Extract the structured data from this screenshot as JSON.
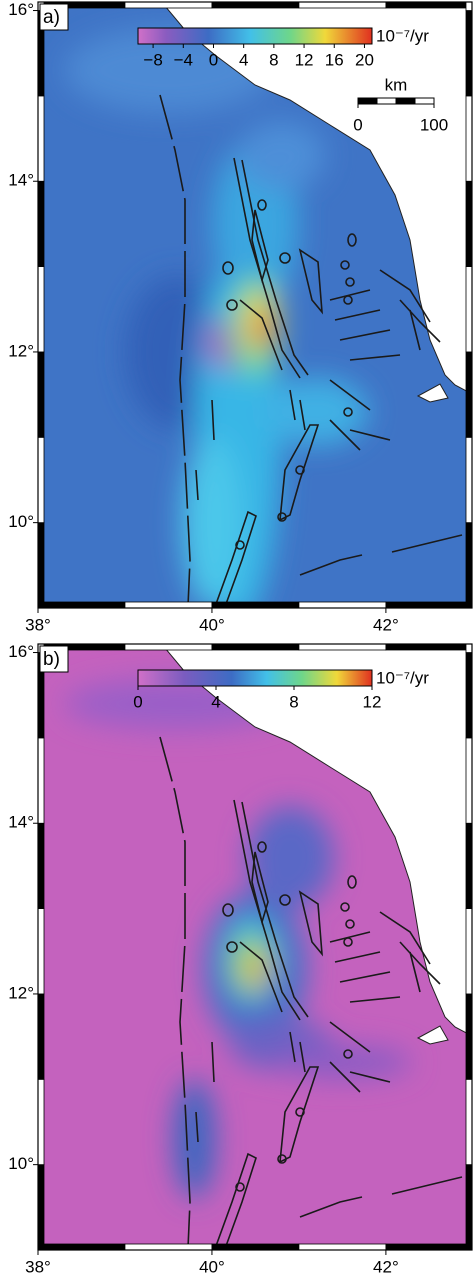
{
  "panels": [
    {
      "label": "a)",
      "colorbar": {
        "clim": [
          -10,
          21
        ],
        "ticks": [
          {
            "value": -8,
            "label": "−8"
          },
          {
            "value": -4,
            "label": "−4"
          },
          0,
          4,
          8,
          12,
          16,
          20
        ],
        "unit": "10⁻⁷/yr"
      },
      "scale_bar": {
        "title": "km",
        "ticks": [
          0,
          100
        ]
      },
      "map": {
        "xlim": [
          38,
          42.99
        ],
        "ylim": [
          9,
          16.1
        ],
        "xticks": [
          {
            "value": 38,
            "label": "38°"
          },
          {
            "value": 40,
            "label": "40°"
          },
          {
            "value": 42,
            "label": "42°"
          }
        ],
        "yticks": [
          {
            "value": 10,
            "label": "10°"
          },
          {
            "value": 12,
            "label": "12°"
          },
          {
            "value": 14,
            "label": "14°"
          },
          {
            "value": 16,
            "label": "16°"
          }
        ]
      }
    },
    {
      "label": "b)",
      "colorbar": {
        "clim": [
          0,
          12
        ],
        "ticks": [
          0,
          4,
          8,
          12
        ],
        "unit": "10⁻⁷/yr"
      },
      "map": {
        "xlim": [
          38,
          42.99
        ],
        "ylim": [
          9,
          16.1
        ],
        "xticks": [
          {
            "value": 38,
            "label": "38°"
          },
          {
            "value": 40,
            "label": "40°"
          },
          {
            "value": 42,
            "label": "42°"
          }
        ],
        "yticks": [
          {
            "value": 10,
            "label": "10°"
          },
          {
            "value": 12,
            "label": "12°"
          },
          {
            "value": 14,
            "label": "14°"
          },
          {
            "value": 16,
            "label": "16°"
          }
        ]
      }
    }
  ]
}
